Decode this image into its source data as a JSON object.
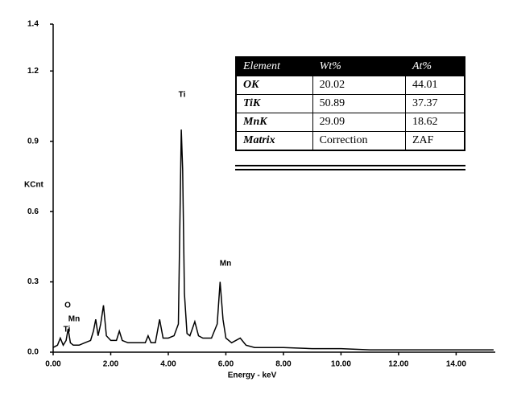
{
  "chart_data": {
    "type": "line",
    "x_label": "Energy - keV",
    "y_label": "KCnt",
    "xlim": [
      0,
      15.36
    ],
    "ylim": [
      0,
      1.4
    ],
    "xticks": [
      {
        "value": 0,
        "label": "0.00"
      },
      {
        "value": 2,
        "label": "2.00"
      },
      {
        "value": 4,
        "label": "4.00"
      },
      {
        "value": 6,
        "label": "6.00"
      },
      {
        "value": 8,
        "label": "8.00"
      },
      {
        "value": 10,
        "label": "10.00"
      },
      {
        "value": 12,
        "label": "12.00"
      },
      {
        "value": 14,
        "label": "14.00"
      }
    ],
    "yticks": [
      {
        "value": 0,
        "label": "0.0"
      },
      0.3,
      0.6,
      0.9,
      1.2,
      1.4
    ],
    "series": [
      {
        "color": "#000000",
        "x": [
          0.0,
          0.15,
          0.25,
          0.35,
          0.45,
          0.52,
          0.6,
          0.7,
          0.9,
          1.1,
          1.3,
          1.4,
          1.48,
          1.56,
          1.65,
          1.75,
          1.85,
          2.0,
          2.2,
          2.3,
          2.4,
          2.6,
          2.9,
          3.2,
          3.3,
          3.4,
          3.55,
          3.7,
          3.82,
          4.0,
          4.2,
          4.35,
          4.45,
          4.5,
          4.56,
          4.65,
          4.75,
          4.92,
          5.05,
          5.2,
          5.5,
          5.7,
          5.8,
          5.9,
          6.0,
          6.2,
          6.5,
          6.7,
          7.0,
          8.0,
          9.0,
          10.0,
          11.0,
          12.0,
          13.0,
          14.0,
          15.3
        ],
        "values": [
          0.02,
          0.03,
          0.06,
          0.03,
          0.05,
          0.1,
          0.04,
          0.03,
          0.03,
          0.04,
          0.05,
          0.09,
          0.14,
          0.07,
          0.12,
          0.2,
          0.07,
          0.05,
          0.05,
          0.09,
          0.05,
          0.04,
          0.04,
          0.04,
          0.07,
          0.04,
          0.04,
          0.14,
          0.06,
          0.06,
          0.07,
          0.12,
          0.95,
          0.78,
          0.25,
          0.08,
          0.07,
          0.13,
          0.07,
          0.06,
          0.06,
          0.12,
          0.3,
          0.14,
          0.06,
          0.04,
          0.06,
          0.03,
          0.02,
          0.02,
          0.015,
          0.015,
          0.01,
          0.01,
          0.01,
          0.01,
          0.01
        ]
      }
    ],
    "annotations": [
      "Ti",
      "Mn",
      "O",
      "Mn",
      "Ti"
    ]
  },
  "table": {
    "header": [
      "Element",
      "Wt%",
      "At%"
    ],
    "rows": [
      [
        "OK",
        "20.02",
        "44.01"
      ],
      [
        "TiK",
        "50.89",
        "37.37"
      ],
      [
        "MnK",
        "29.09",
        "18.62"
      ],
      [
        "Matrix",
        "Correction",
        "ZAF"
      ]
    ]
  }
}
